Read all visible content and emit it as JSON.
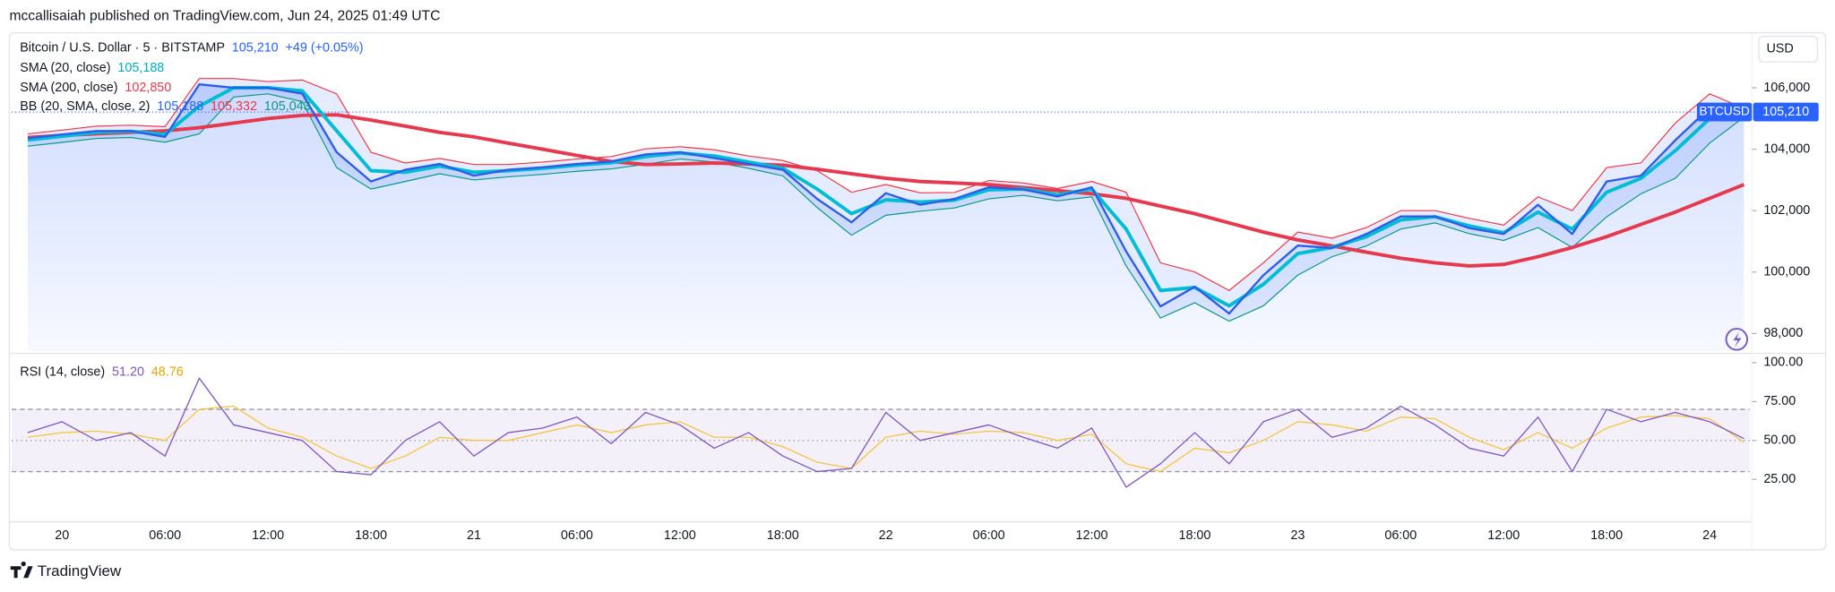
{
  "header": "mccallisaiah published on TradingView.com, Jun 24, 2025 01:49 UTC",
  "currency": "USD",
  "brand": "TradingView",
  "chart_data": [
    {
      "type": "line",
      "ticker": "BTCUSD",
      "categories": [
        null,
        "20",
        null,
        null,
        "06:00",
        null,
        null,
        "12:00",
        null,
        null,
        "18:00",
        null,
        null,
        "21",
        null,
        null,
        "06:00",
        null,
        null,
        "12:00",
        null,
        null,
        "18:00",
        null,
        null,
        "22",
        null,
        null,
        "06:00",
        null,
        null,
        "12:00",
        null,
        null,
        "18:00",
        null,
        null,
        "23",
        null,
        null,
        "06:00",
        null,
        null,
        "12:00",
        null,
        null,
        "18:00",
        null,
        null,
        "24",
        null
      ],
      "ylim": [
        97430,
        107790
      ],
      "yticks": [
        {
          "value": 98000,
          "label": "98,000"
        },
        {
          "value": 100000,
          "label": "100,000"
        },
        {
          "value": 102000,
          "label": "102,000"
        },
        {
          "value": 104000,
          "label": "104,000"
        },
        {
          "value": 106000,
          "label": "106,000"
        }
      ],
      "grid": false,
      "series": [
        {
          "name": "Bitcoin / U.S. Dollar · 5 · BITSTAMP",
          "color": "#2f5bea",
          "last_label": {
            "value": 105210,
            "label": "105,210"
          },
          "change_label": "+49 (+0.05%)",
          "values": [
            104360,
            104480,
            104590,
            104590,
            104400,
            106110,
            106000,
            106000,
            105810,
            103900,
            102950,
            103330,
            103520,
            103140,
            103330,
            103410,
            103520,
            103600,
            103830,
            103900,
            103710,
            103520,
            103330,
            102380,
            101620,
            102570,
            102190,
            102380,
            102760,
            102690,
            102460,
            102760,
            100670,
            98880,
            99520,
            98650,
            99900,
            100860,
            100780,
            101240,
            101810,
            101810,
            101430,
            101240,
            102190,
            101240,
            102950,
            103140,
            104290,
            105350,
            105210
          ]
        },
        {
          "name": "SMA (20, close)",
          "color": "#00bcd4",
          "last_label": {
            "value": 105188,
            "label": "105,188"
          },
          "values": [
            104300,
            104420,
            104550,
            104580,
            104480,
            105400,
            106000,
            106000,
            105900,
            104600,
            103300,
            103250,
            103450,
            103250,
            103300,
            103380,
            103480,
            103560,
            103760,
            103880,
            103780,
            103580,
            103380,
            102700,
            101900,
            102350,
            102280,
            102340,
            102680,
            102700,
            102520,
            102700,
            101400,
            99400,
            99500,
            98900,
            99600,
            100600,
            100800,
            101150,
            101700,
            101800,
            101500,
            101280,
            101950,
            101400,
            102600,
            103050,
            103950,
            105000,
            105188
          ]
        },
        {
          "name": "SMA (200, close)",
          "color": "#e53950",
          "last_label": {
            "value": 102850,
            "label": "102,850"
          },
          "values": [
            104380,
            104450,
            104500,
            104550,
            104600,
            104700,
            104850,
            105000,
            105100,
            105120,
            104950,
            104750,
            104550,
            104400,
            104200,
            104000,
            103800,
            103600,
            103500,
            103520,
            103550,
            103520,
            103480,
            103350,
            103200,
            103050,
            102950,
            102900,
            102850,
            102750,
            102650,
            102550,
            102400,
            102150,
            101900,
            101600,
            101300,
            101050,
            100850,
            100650,
            100450,
            100300,
            100200,
            100250,
            100500,
            100800,
            101150,
            101550,
            101950,
            102400,
            102850
          ]
        }
      ],
      "bands": {
        "name": "BB (20, SMA, close, 2)",
        "upper_color": "#f23645",
        "lower_color": "#089981",
        "last_labels": [
          {
            "value": 105188,
            "label": "105,188"
          },
          {
            "value": 105332,
            "label": "105,332"
          },
          {
            "value": 105043,
            "label": "105,043"
          }
        ],
        "upper": [
          104500,
          104620,
          104750,
          104780,
          104730,
          106300,
          106300,
          106200,
          106250,
          105800,
          103900,
          103550,
          103700,
          103500,
          103500,
          103580,
          103680,
          103760,
          104010,
          104080,
          103980,
          103780,
          103630,
          103300,
          102600,
          102850,
          102580,
          102590,
          102980,
          102900,
          102720,
          102950,
          102600,
          100300,
          100000,
          99400,
          100300,
          101300,
          101100,
          101450,
          102000,
          102000,
          101750,
          101530,
          102450,
          102000,
          103400,
          103550,
          104850,
          105800,
          105332
        ],
        "lower": [
          104100,
          104220,
          104350,
          104380,
          104230,
          104500,
          105700,
          105800,
          105550,
          103400,
          102700,
          102950,
          103200,
          103000,
          103100,
          103180,
          103280,
          103360,
          103510,
          103680,
          103580,
          103380,
          103130,
          102100,
          101200,
          101850,
          101980,
          102090,
          102380,
          102500,
          102320,
          102450,
          100200,
          98500,
          99000,
          98400,
          98900,
          99900,
          100500,
          100850,
          101400,
          101600,
          101250,
          101030,
          101450,
          100800,
          101800,
          102550,
          103050,
          104200,
          105043
        ]
      }
    },
    {
      "type": "line",
      "ylim": [
        -1.5,
        106
      ],
      "yticks": [
        {
          "value": 25,
          "label": "25.00"
        },
        {
          "value": 50,
          "label": "50.00"
        },
        {
          "value": 75,
          "label": "75.00"
        },
        {
          "value": 100,
          "label": "100.00"
        }
      ],
      "bands": [
        30,
        50,
        70
      ],
      "series": [
        {
          "name": "RSI (14, close)",
          "color": "#7e57c2",
          "last_label": {
            "value": 51.2,
            "label": "51.20"
          },
          "values": [
            55,
            62,
            50,
            55,
            40,
            90,
            60,
            55,
            50,
            30,
            28,
            50,
            62,
            40,
            55,
            58,
            65,
            48,
            68,
            60,
            45,
            55,
            40,
            30,
            32,
            68,
            50,
            55,
            60,
            52,
            45,
            58,
            20,
            35,
            55,
            35,
            62,
            70,
            52,
            58,
            72,
            60,
            45,
            40,
            65,
            30,
            70,
            62,
            68,
            62,
            51.2
          ]
        },
        {
          "color": "#f5c542",
          "last_label": {
            "value": 48.76,
            "label": "48.76"
          },
          "values": [
            52,
            55,
            56,
            54,
            50,
            70,
            72,
            58,
            52,
            40,
            32,
            40,
            52,
            50,
            50,
            55,
            60,
            55,
            60,
            62,
            52,
            52,
            46,
            36,
            32,
            52,
            56,
            54,
            56,
            55,
            50,
            54,
            35,
            30,
            45,
            42,
            50,
            62,
            60,
            56,
            65,
            64,
            52,
            44,
            55,
            45,
            58,
            65,
            66,
            64,
            48.76
          ]
        }
      ]
    }
  ]
}
